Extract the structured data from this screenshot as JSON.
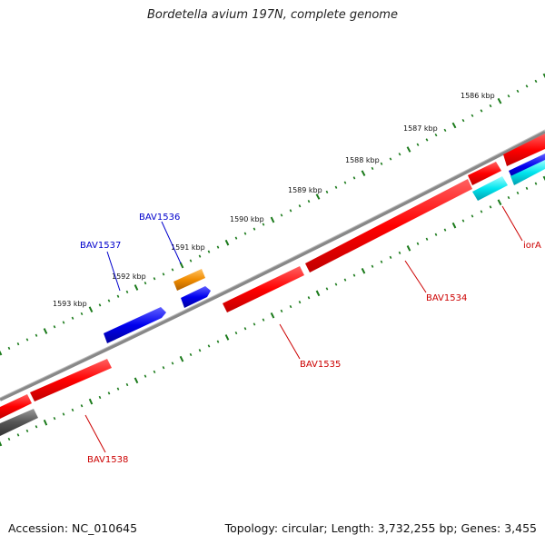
{
  "title": "Bordetella avium 197N, complete genome",
  "footer": {
    "accession": "Accession: NC_010645",
    "summary": "Topology: circular; Length: 3,732,255 bp; Genes: 3,455"
  },
  "scale_labels": [
    "1586 kbp",
    "1587 kbp",
    "1588 kbp",
    "1589 kbp",
    "1590 kbp",
    "1591 kbp",
    "1592 kbp",
    "1593 kbp"
  ],
  "gene_labels": {
    "bav1536": "BAV1536",
    "bav1537": "BAV1537",
    "bav1538": "BAV1538",
    "bav1535": "BAV1535",
    "bav1534": "BAV1534",
    "iora": "iorA"
  },
  "colors": {
    "backbone": "#888888",
    "ticks": "#1a7a1a",
    "red_gene": "#ff0000",
    "blue_gene": "#0000ee",
    "orange_gene": "#f08c00",
    "cyan_gene": "#00e5ee",
    "gray_gene": "#555555",
    "label_red": "#cc0000",
    "label_blue": "#0000cc"
  }
}
